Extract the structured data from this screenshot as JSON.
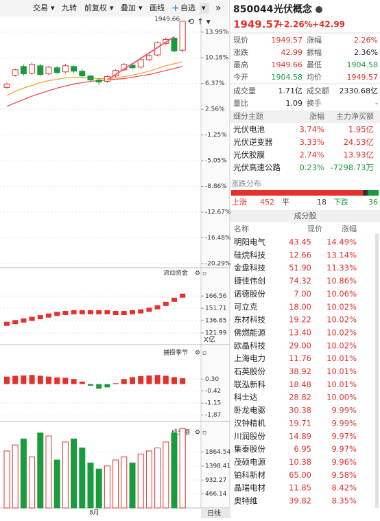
{
  "toolbar": [
    "交易",
    "九转",
    "前复权",
    "叠加",
    "画线",
    "自选"
  ],
  "stock": {
    "code": "850044",
    "name": "光伏概念",
    "price": "1949.57",
    "change_pct": "+2.26%",
    "change": "+42.99"
  },
  "quote": [
    {
      "label": "现价",
      "value": "1949.57",
      "tone": "up"
    },
    {
      "label": "涨幅",
      "value": "2.26%",
      "tone": "up"
    },
    {
      "label": "涨跌",
      "value": "42.99",
      "tone": "up"
    },
    {
      "label": "振幅",
      "value": "2.36%",
      "tone": "flat"
    },
    {
      "label": "最高",
      "value": "1949.66",
      "tone": "up"
    },
    {
      "label": "最低",
      "value": "1904.58",
      "tone": "down"
    },
    {
      "label": "今开",
      "value": "1904.58",
      "tone": "down"
    },
    {
      "label": "均价",
      "value": "1949.57",
      "tone": "up"
    },
    {
      "label": "成交量",
      "value": "1.71亿",
      "tone": "flat"
    },
    {
      "label": "成交额",
      "value": "2330.68亿",
      "tone": "flat"
    },
    {
      "label": "量比",
      "value": "1.09",
      "tone": "flat"
    },
    {
      "label": "换手",
      "value": "-",
      "tone": "flat"
    }
  ],
  "sectors": {
    "headers": [
      "细分主题",
      "涨幅",
      "主力净买额"
    ],
    "rows": [
      {
        "name": "光伏电池",
        "pct": "3.74%",
        "amount": "1.95亿",
        "tone": "up"
      },
      {
        "name": "光伏逆变器",
        "pct": "3.33%",
        "amount": "24.53亿",
        "tone": "up"
      },
      {
        "name": "光伏胶膜",
        "pct": "2.74%",
        "amount": "13.93亿",
        "tone": "up"
      },
      {
        "name": "光伏高速公路",
        "pct": "0.23%",
        "amount": "-7298.73万",
        "tone": "down"
      }
    ]
  },
  "breadth": {
    "title": "涨跌分布",
    "up_label": "上涨",
    "up": 452,
    "flat_label": "平",
    "flat": 18,
    "down_label": "下跌",
    "down": 36
  },
  "constituents": {
    "title": "成分股",
    "headers": [
      "名称",
      "现价",
      "涨幅"
    ],
    "rows": [
      [
        "明阳电气",
        "43.45",
        "14.49%"
      ],
      [
        "硅烷科技",
        "12.66",
        "13.14%"
      ],
      [
        "金盘科技",
        "51.90",
        "11.33%"
      ],
      [
        "捷佳伟创",
        "74.32",
        "10.86%"
      ],
      [
        "诺德股份",
        "7.00",
        "10.06%"
      ],
      [
        "可立克",
        "18.00",
        "10.02%"
      ],
      [
        "东材科技",
        "19.22",
        "10.02%"
      ],
      [
        "佛燃能源",
        "13.40",
        "10.02%"
      ],
      [
        "欧晶科技",
        "29.00",
        "10.02%"
      ],
      [
        "上海电力",
        "11.76",
        "10.01%"
      ],
      [
        "石英股份",
        "38.92",
        "10.01%"
      ],
      [
        "联泓新科",
        "18.48",
        "10.01%"
      ],
      [
        "科士达",
        "28.82",
        "10.00%"
      ],
      [
        "卧龙电驱",
        "30.38",
        "9.99%"
      ],
      [
        "汉钟精机",
        "19.71",
        "9.99%"
      ],
      [
        "川润股份",
        "14.89",
        "9.97%"
      ],
      [
        "集泰股份",
        "6.95",
        "9.97%"
      ],
      [
        "茂硕电源",
        "10.38",
        "9.96%"
      ],
      [
        "铂科新材",
        "65.00",
        "9.58%"
      ],
      [
        "晶瑞电材",
        "11.85",
        "8.42%"
      ],
      [
        "奥特维",
        "39.82",
        "8.35%"
      ]
    ]
  },
  "main_chart": {
    "high_label": "1949.66",
    "ylim": [
      -20.9,
      16.2
    ],
    "yticks": [
      {
        "value": 13.99,
        "label": "13.99%"
      },
      {
        "value": 10.18,
        "label": "10.18%"
      },
      {
        "value": 6.37,
        "label": "6.37%"
      },
      {
        "value": 2.56,
        "label": "2.56%"
      },
      {
        "value": -1.25,
        "label": "-1.25%"
      },
      {
        "value": -5.05,
        "label": "-5.05%"
      },
      {
        "value": -8.86,
        "label": "-8.86%"
      },
      {
        "value": -12.67,
        "label": "-12.67%"
      },
      {
        "value": -16.48,
        "label": "-16.48%"
      },
      {
        "value": -20.29,
        "label": "-20.29%"
      }
    ],
    "open": [
      5.8,
      7.6,
      8.9,
      7.9,
      9.0,
      7.8,
      8.7,
      8.1,
      8.9,
      8.2,
      7.5,
      6.9,
      6.7,
      7.5,
      8.4,
      9.1,
      8.8,
      9.9,
      10.6,
      12.3,
      13.1,
      11.3
    ],
    "close": [
      6.3,
      8.4,
      7.8,
      9.2,
      7.7,
      8.8,
      8.0,
      9.0,
      8.2,
      7.5,
      6.9,
      6.6,
      7.4,
      8.3,
      9.2,
      8.7,
      9.9,
      10.5,
      12.4,
      12.9,
      11.2,
      15.6
    ],
    "high": [
      6.5,
      8.6,
      9.2,
      9.5,
      9.3,
      9.0,
      9.0,
      9.3,
      9.1,
      8.5,
      7.7,
      7.2,
      7.6,
      8.5,
      9.4,
      9.5,
      10.1,
      10.7,
      12.6,
      13.2,
      13.3,
      15.7
    ],
    "low": [
      5.6,
      7.4,
      7.6,
      7.7,
      7.5,
      7.6,
      7.8,
      7.9,
      7.9,
      7.3,
      6.6,
      6.2,
      6.5,
      7.3,
      8.2,
      8.5,
      8.6,
      9.7,
      10.4,
      12.0,
      11.0,
      11.0
    ],
    "ma": [
      {
        "color": "#f0a020",
        "values": [
          4.6,
          5.2,
          5.7,
          6.1,
          6.5,
          6.8,
          7.0,
          7.2,
          7.3,
          7.3,
          7.2,
          7.1,
          7.1,
          7.2,
          7.4,
          7.6,
          7.9,
          8.2,
          8.6,
          9.0,
          9.3,
          9.6
        ]
      },
      {
        "color": "#e8404a",
        "values": [
          3.0,
          3.5,
          4.0,
          4.5,
          4.9,
          5.3,
          5.7,
          6.0,
          6.3,
          6.5,
          6.7,
          6.8,
          6.9,
          7.0,
          7.1,
          7.3,
          7.5,
          7.7,
          8.0,
          8.3,
          8.6,
          8.9
        ]
      }
    ]
  },
  "flow_chart": {
    "title": "流动资金",
    "unit": "X亿",
    "ylim": [
      109.5,
      189.2
    ],
    "yticks": [
      166.56,
      151.71,
      136.85,
      121.99
    ],
    "values": [
      133,
      135,
      137,
      139,
      141,
      143,
      145,
      146,
      147,
      147,
      147,
      147,
      147,
      146,
      146,
      147,
      148,
      150,
      153,
      157,
      162,
      167
    ]
  },
  "season_chart": {
    "title": "捕捞季节",
    "ylim": [
      -2.18,
      1.64
    ],
    "yticks": [
      {
        "value": 0.3,
        "label": "0.30"
      },
      -0.42,
      -1.15,
      -1.87
    ],
    "values": [
      0.45,
      0.5,
      0.52,
      0.55,
      0.5,
      0.45,
      0.4,
      0.38,
      0.3,
      0.15,
      -0.1,
      -0.28,
      -0.2,
      0.05,
      0.3,
      0.42,
      0.48,
      0.52,
      0.55,
      0.5,
      0.42,
      0.35
    ]
  },
  "volume_chart": {
    "title": "成交额",
    "ylim": [
      0,
      2700
    ],
    "yticks": [
      1864.54,
      1398.41,
      932.27,
      466.14
    ],
    "values": [
      1900,
      2100,
      2300,
      1700,
      2500,
      2400,
      1600,
      2200,
      2300,
      2000,
      1500,
      1300,
      1400,
      1600,
      1700,
      1500,
      1800,
      1900,
      2000,
      2200,
      2500,
      2650
    ]
  },
  "x_axis": {
    "month_label": "8月",
    "period": "日线"
  }
}
